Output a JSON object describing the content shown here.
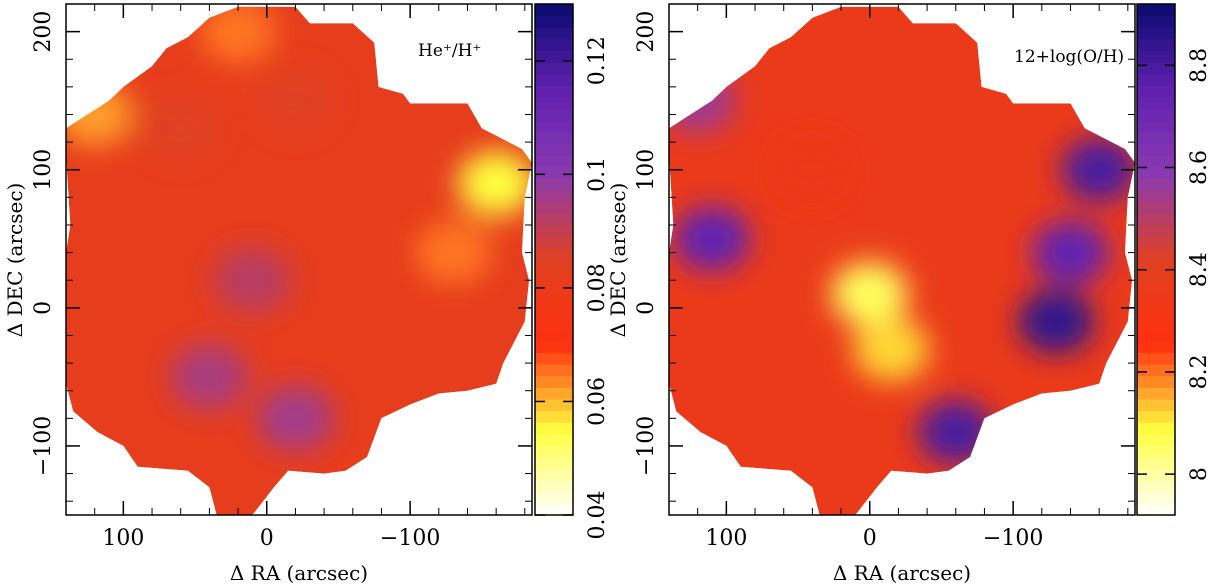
{
  "chart_data": [
    {
      "type": "heatmap",
      "title": "",
      "map_label": "He⁺/H⁺",
      "xlabel": "Δ RA (arcsec)",
      "ylabel": "Δ DEC (arcsec)",
      "xlim": [
        140,
        -185
      ],
      "ylim": [
        -150,
        220
      ],
      "x_ticks": [
        "100",
        "0",
        "−100"
      ],
      "y_ticks": [
        "−100",
        "0",
        "100",
        "200"
      ],
      "colorbar": {
        "range": [
          0.04,
          0.13
        ],
        "tick_values": [
          0.04,
          0.06,
          0.08,
          0.1,
          0.12
        ],
        "tick_labels": [
          "0.04",
          "0.06",
          "0.08",
          "0.1",
          "0.12"
        ],
        "colors": [
          "#ffffff",
          "#ffff40",
          "#ff3010",
          "#e04020",
          "#8a3ab0",
          "#6020b0",
          "#0a0a70"
        ]
      },
      "regions": [
        {
          "ra": 60,
          "dec": 130,
          "value": 0.085
        },
        {
          "ra": -20,
          "dec": 150,
          "value": 0.085
        },
        {
          "ra": 10,
          "dec": 20,
          "value": 0.092
        },
        {
          "ra": 40,
          "dec": -50,
          "value": 0.095
        },
        {
          "ra": -20,
          "dec": -80,
          "value": 0.096
        },
        {
          "ra": -130,
          "dec": 40,
          "value": 0.065
        },
        {
          "ra": -160,
          "dec": 90,
          "value": 0.055
        },
        {
          "ra": 120,
          "dec": 140,
          "value": 0.062
        },
        {
          "ra": 20,
          "dec": 200,
          "value": 0.065
        }
      ]
    },
    {
      "type": "heatmap",
      "title": "",
      "map_label": "12+log(O/H)",
      "xlabel": "Δ RA (arcsec)",
      "ylabel": "Δ DEC (arcsec)",
      "xlim": [
        140,
        -185
      ],
      "ylim": [
        -150,
        220
      ],
      "x_ticks": [
        "100",
        "0",
        "−100"
      ],
      "y_ticks": [
        "−100",
        "0",
        "100",
        "200"
      ],
      "colorbar": {
        "range": [
          7.92,
          8.92
        ],
        "tick_values": [
          8.0,
          8.2,
          8.4,
          8.6,
          8.8
        ],
        "tick_labels": [
          "8",
          "8.2",
          "8.4",
          "8.6",
          "8.8"
        ],
        "colors": [
          "#ffffff",
          "#ffff40",
          "#ff3010",
          "#e04020",
          "#8a3ab0",
          "#6020b0",
          "#0a0a70"
        ]
      },
      "regions": [
        {
          "ra": 0,
          "dec": 10,
          "value": 8.06
        },
        {
          "ra": -15,
          "dec": -30,
          "value": 8.12
        },
        {
          "ra": 40,
          "dec": 100,
          "value": 8.35
        },
        {
          "ra": -140,
          "dec": 40,
          "value": 8.75
        },
        {
          "ra": -160,
          "dec": 100,
          "value": 8.8
        },
        {
          "ra": -130,
          "dec": -10,
          "value": 8.85
        },
        {
          "ra": -60,
          "dec": -90,
          "value": 8.8
        },
        {
          "ra": 110,
          "dec": 50,
          "value": 8.75
        },
        {
          "ra": 120,
          "dec": 150,
          "value": 8.55
        }
      ]
    }
  ]
}
